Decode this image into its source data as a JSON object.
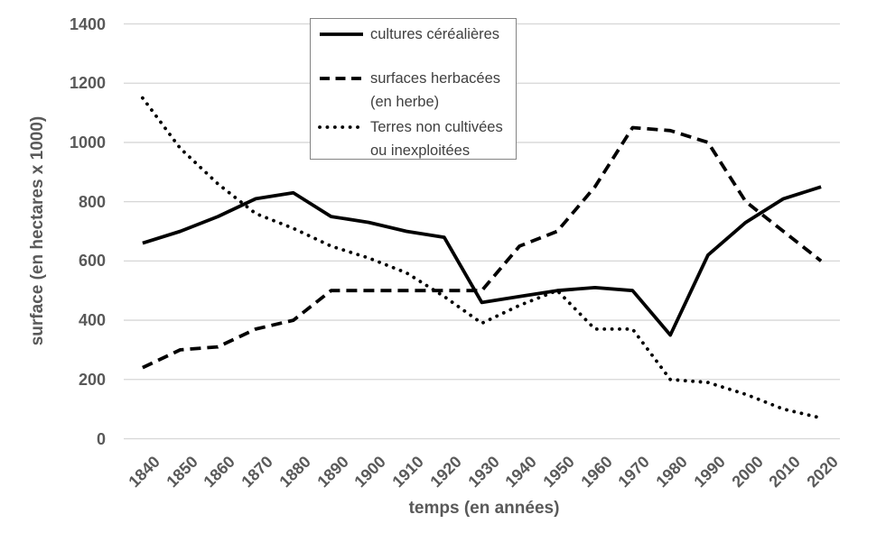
{
  "chart_data": {
    "type": "line",
    "title": "",
    "xlabel": "temps (en années)",
    "ylabel": "surface (en hectares x 1000)",
    "categories": [
      "1840",
      "1850",
      "1860",
      "1870",
      "1880",
      "1890",
      "1900",
      "1910",
      "1920",
      "1930",
      "1940",
      "1950",
      "1960",
      "1970",
      "1980",
      "1990",
      "2000",
      "2010",
      "2020"
    ],
    "y_ticks": [
      "0",
      "200",
      "400",
      "600",
      "800",
      "1000",
      "1200",
      "1400"
    ],
    "ylim": [
      0,
      1400
    ],
    "grid": "horizontal-only",
    "legend_position": "top-center-inside",
    "series": [
      {
        "name": "cultures céréalières",
        "legend_label": "cultures céréalières",
        "style": "solid",
        "color": "#000000",
        "values": [
          660,
          700,
          750,
          810,
          830,
          750,
          730,
          700,
          680,
          460,
          480,
          500,
          510,
          500,
          350,
          620,
          730,
          810,
          850
        ]
      },
      {
        "name": "surfaces herbacées (en herbe)",
        "legend_label": "surfaces herbacées\n(en herbe)",
        "style": "dashed",
        "color": "#000000",
        "values": [
          240,
          300,
          310,
          370,
          400,
          500,
          500,
          500,
          500,
          500,
          650,
          700,
          850,
          1050,
          1040,
          1000,
          800,
          700,
          600
        ]
      },
      {
        "name": "Terres non cultivées ou inexploitées",
        "legend_label": "Terres non cultivées\nou inexploitées",
        "style": "dotted",
        "color": "#000000",
        "values": [
          1150,
          980,
          860,
          760,
          710,
          650,
          610,
          560,
          480,
          390,
          450,
          500,
          370,
          370,
          200,
          190,
          150,
          100,
          70
        ]
      }
    ],
    "colors": {
      "background": "#ffffff",
      "axis_text": "#595959",
      "gridline": "#d6d6d6",
      "line": "#000000",
      "legend_border": "#848484",
      "legend_text": "#404040"
    }
  }
}
